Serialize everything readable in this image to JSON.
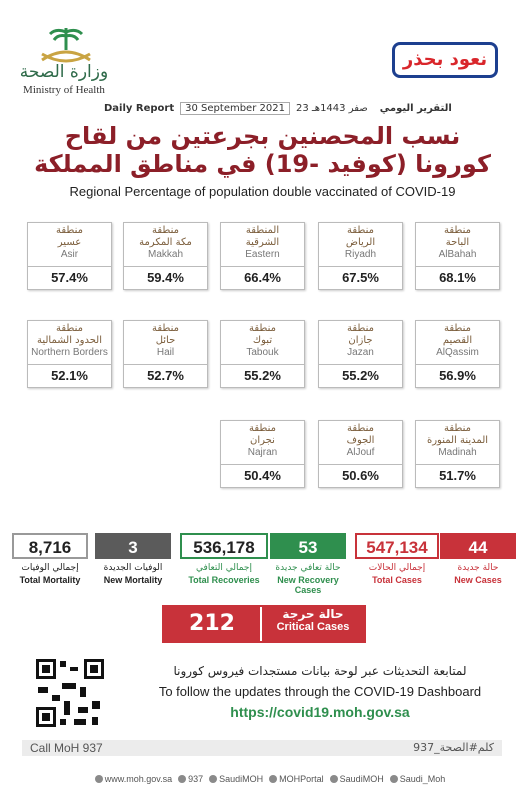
{
  "header": {
    "ministry_ar": "وزارة الصحة",
    "ministry_en": "Ministry of Health",
    "campaign": "نعود بحذر",
    "report_label_en": "Daily Report",
    "date_en": "30 September 2021",
    "date_hijri": "23 صفر 1443هـ",
    "report_label_ar": "التقرير اليومي"
  },
  "title": {
    "ar_line1": "نسب المحصنين بجرعتين من لقاح",
    "ar_line2": "كورونا (كوفيد -19) في مناطق المملكة",
    "en": "Regional Percentage of population double vaccinated of COVID-19"
  },
  "regions": [
    [
      {
        "label_ar": [
          "منطقة",
          "الباحة"
        ],
        "name": "AlBahah",
        "percentage": "68.1%"
      },
      {
        "label_ar": [
          "منطقة",
          "الرياض"
        ],
        "name": "Riyadh",
        "percentage": "67.5%"
      },
      {
        "label_ar": [
          "المنطقة",
          "الشرقية"
        ],
        "name": "Eastern",
        "percentage": "66.4%"
      },
      {
        "label_ar": [
          "منطقة",
          "مكة المكرمة"
        ],
        "name": "Makkah",
        "percentage": "59.4%"
      },
      {
        "label_ar": [
          "منطقة",
          "عسير"
        ],
        "name": "Asir",
        "percentage": "57.4%"
      }
    ],
    [
      {
        "label_ar": [
          "منطقة",
          "القصيم"
        ],
        "name": "AlQassim",
        "percentage": "56.9%"
      },
      {
        "label_ar": [
          "منطقة",
          "جازان"
        ],
        "name": "Jazan",
        "percentage": "55.2%"
      },
      {
        "label_ar": [
          "منطقة",
          "تبوك"
        ],
        "name": "Tabouk",
        "percentage": "55.2%"
      },
      {
        "label_ar": [
          "منطقة",
          "حائل"
        ],
        "name": "Hail",
        "percentage": "52.7%"
      },
      {
        "label_ar": [
          "منطقة",
          "الحدود الشمالية"
        ],
        "name": "Northern Borders",
        "percentage": "52.1%"
      }
    ],
    [
      {
        "label_ar": [
          "منطقة",
          "المدينة المنورة"
        ],
        "name": "Madinah",
        "percentage": "51.7%"
      },
      {
        "label_ar": [
          "منطقة",
          "الجوف"
        ],
        "name": "AlJouf",
        "percentage": "50.6%"
      },
      {
        "label_ar": [
          "منطقة",
          "نجران"
        ],
        "name": "Najran",
        "percentage": "50.4%"
      }
    ]
  ],
  "stats": [
    {
      "value": "8,716",
      "label_ar": "إجمالي الوفيات",
      "label_en": "Total Mortality"
    },
    {
      "value": "3",
      "label_ar": "الوفيات الجديدة",
      "label_en": "New Mortality"
    },
    {
      "value": "536,178",
      "label_ar": "إجمالي التعافي",
      "label_en": "Total Recoveries"
    },
    {
      "value": "53",
      "label_ar": "حالة تعافي جديدة",
      "label_en": "New Recovery Cases"
    },
    {
      "value": "547,134",
      "label_ar": "إجمالي الحالات",
      "label_en": "Total Cases"
    },
    {
      "value": "44",
      "label_ar": "حالة جديدة",
      "label_en": "New Cases"
    }
  ],
  "critical": {
    "value": "212",
    "label_ar": "حالة حرجة",
    "label_en": "Critical Cases"
  },
  "follow": {
    "ar": "لمتابعة التحديثات عبر لوحة بيانات مستجدات فيروس كورونا",
    "en": "To follow the updates through the COVID-19 Dashboard",
    "url": "https://covid19.moh.gov.sa"
  },
  "footer": {
    "call": "Call MoH 937",
    "hashtag": "كلم#الصحة_937",
    "links": [
      "www.moh.gov.sa",
      "937",
      "SaudiMOH",
      "MOHPortal",
      "SaudiMOH",
      "Saudi_Moh"
    ]
  }
}
